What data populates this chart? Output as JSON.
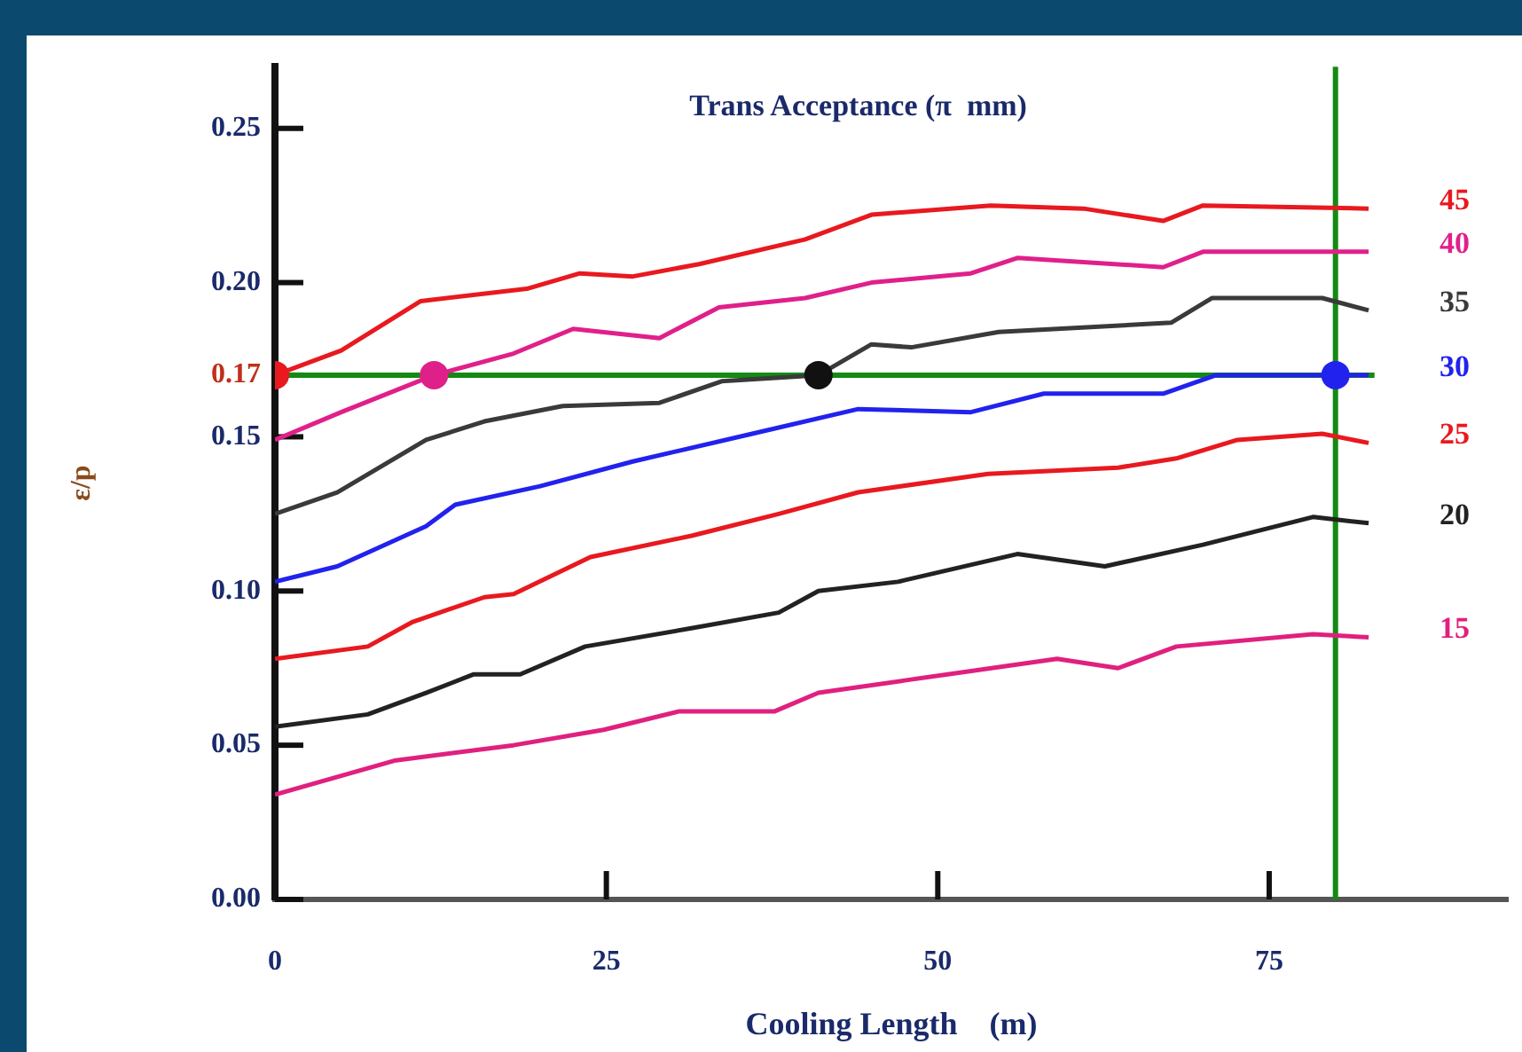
{
  "chart_data": {
    "type": "line",
    "legend_title": "Trans Acceptance (π  mm)",
    "xlabel": "Cooling Length    (m)",
    "ylabel": "ε/p",
    "xlim": [
      0,
      93
    ],
    "xticks": [
      0,
      25,
      50,
      75
    ],
    "ylim": [
      0,
      0.27
    ],
    "yticks": [
      {
        "value": 0,
        "label": "0.00"
      },
      0.05,
      {
        "value": 0.1,
        "label": "0.10"
      },
      0.15,
      0.17,
      {
        "value": 0.2,
        "label": "0.20"
      },
      0.25
    ],
    "marker": "none",
    "series": [
      {
        "name": "45",
        "color": "#e8191f",
        "x": [
          0,
          5,
          11,
          19,
          23,
          27,
          32,
          40,
          45,
          54,
          61,
          67,
          70,
          82.5
        ],
        "values": [
          0.17,
          0.178,
          0.194,
          0.198,
          0.203,
          0.202,
          0.206,
          0.214,
          0.222,
          0.225,
          0.224,
          0.22,
          0.225,
          0.224
        ]
      },
      {
        "name": "40",
        "color": "#e0208a",
        "x": [
          0,
          5,
          12,
          18,
          22.5,
          29,
          33.5,
          40,
          45,
          52.5,
          56,
          67,
          70,
          82.5
        ],
        "values": [
          0.149,
          0.158,
          0.17,
          0.177,
          0.185,
          0.182,
          0.192,
          0.195,
          0.2,
          0.203,
          0.208,
          0.205,
          0.21,
          0.21
        ]
      },
      {
        "name": "35",
        "color": "#3a3a3a",
        "x": [
          0,
          4.7,
          11.4,
          15.8,
          21.7,
          29,
          33.7,
          41,
          45,
          48,
          54.6,
          67.6,
          70.7,
          79,
          82.5
        ],
        "values": [
          0.125,
          0.132,
          0.149,
          0.155,
          0.16,
          0.161,
          0.168,
          0.17,
          0.18,
          0.179,
          0.184,
          0.187,
          0.195,
          0.195,
          0.191
        ]
      },
      {
        "name": "30",
        "color": "#2222ee",
        "x": [
          0,
          4.7,
          11.4,
          13.6,
          20,
          27,
          36,
          44,
          52.5,
          58,
          67,
          71,
          80,
          82.5
        ],
        "values": [
          0.103,
          0.108,
          0.121,
          0.128,
          0.134,
          0.142,
          0.151,
          0.159,
          0.158,
          0.164,
          0.164,
          0.17,
          0.17,
          0.17
        ]
      },
      {
        "name": "25",
        "color": "#e8191f",
        "x": [
          0,
          7,
          10.4,
          15.8,
          18,
          23.8,
          31.5,
          38,
          44,
          53.8,
          63.6,
          68,
          72.6,
          79,
          82.5
        ],
        "values": [
          0.078,
          0.082,
          0.09,
          0.098,
          0.099,
          0.111,
          0.118,
          0.125,
          0.132,
          0.138,
          0.14,
          0.143,
          0.149,
          0.151,
          0.148
        ]
      },
      {
        "name": "20",
        "color": "#222222",
        "x": [
          0,
          7,
          11.4,
          15,
          18.5,
          23.4,
          31.5,
          38,
          41,
          47,
          56,
          62.6,
          70,
          78.3,
          82.5
        ],
        "values": [
          0.056,
          0.06,
          0.067,
          0.073,
          0.073,
          0.082,
          0.088,
          0.093,
          0.1,
          0.103,
          0.112,
          0.108,
          0.115,
          0.124,
          0.122
        ]
      },
      {
        "name": "15",
        "color": "#e0207f",
        "x": [
          0,
          9,
          18,
          24.8,
          30.5,
          37.7,
          41,
          47.5,
          59,
          63.6,
          68,
          78.3,
          82.5
        ],
        "values": [
          0.034,
          0.045,
          0.05,
          0.055,
          0.061,
          0.061,
          0.067,
          0.071,
          0.078,
          0.075,
          0.082,
          0.086,
          0.085
        ]
      },
      {
        "type": "scatter",
        "marker": "circle",
        "x": [
          0,
          12,
          41,
          80
        ],
        "values": [
          0.17,
          0.17,
          0.17,
          0.17
        ],
        "colors": [
          "#e8191f",
          "#e0208a",
          "#111111",
          "#2222ee"
        ]
      }
    ],
    "ref_lines": [
      {
        "axis": "y",
        "value": 0.17,
        "color": "#138a13"
      },
      {
        "axis": "x",
        "value": 80,
        "color": "#138a13"
      }
    ]
  }
}
